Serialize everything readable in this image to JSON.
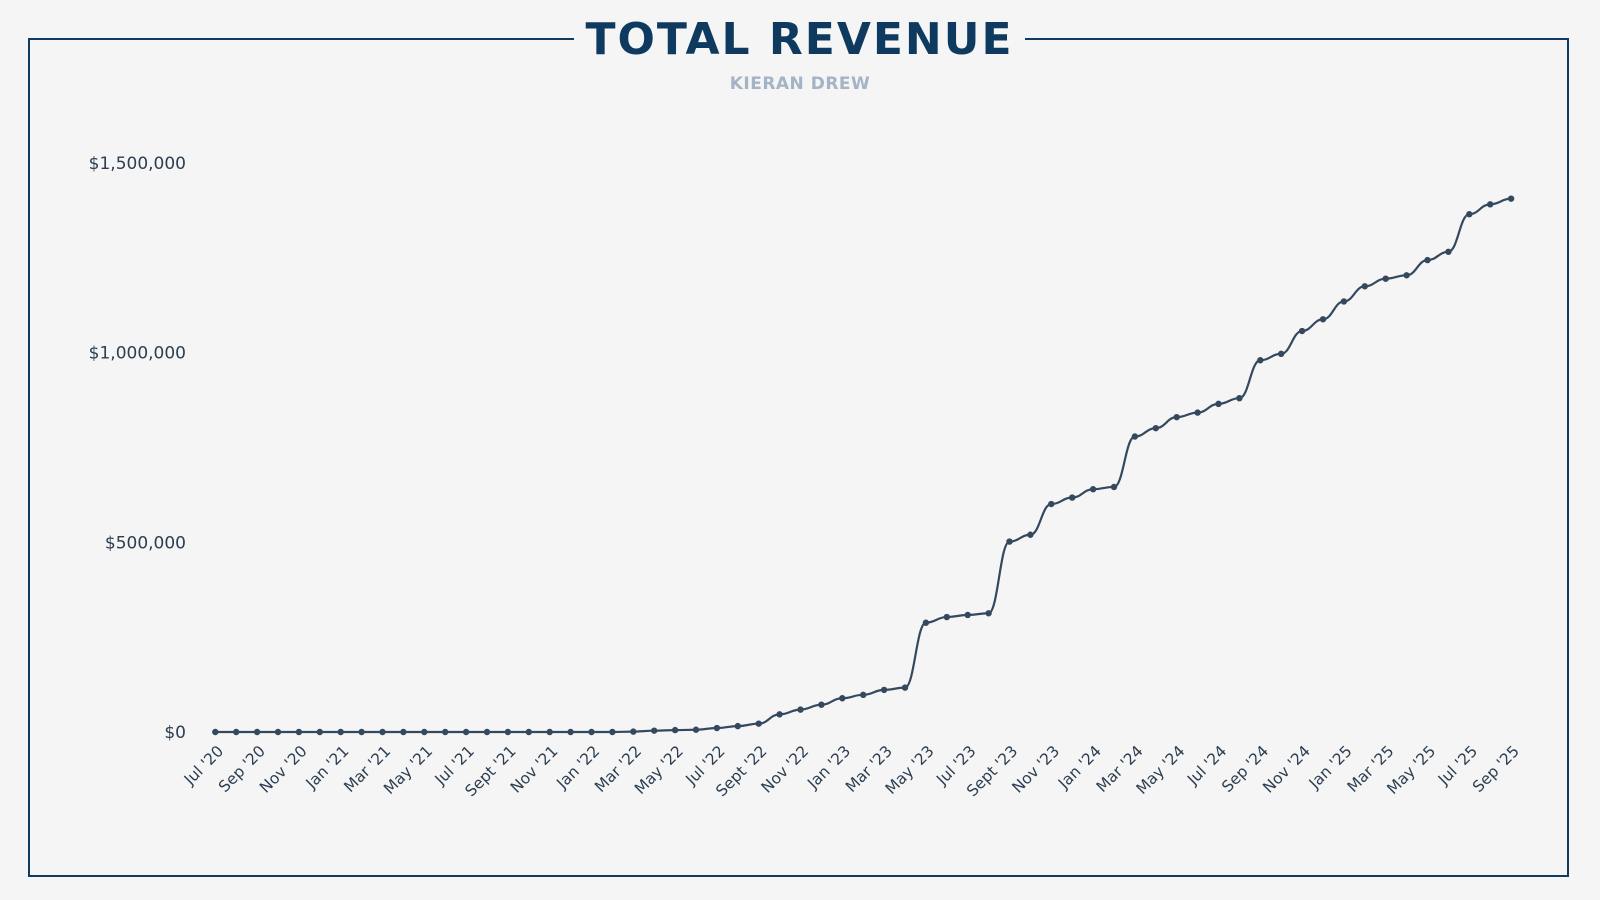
{
  "chart_data": {
    "type": "line",
    "title": "TOTAL REVENUE",
    "subtitle": "KIERAN DREW",
    "xlabel": "",
    "ylabel": "",
    "ylim": [
      0,
      1500000
    ],
    "yticks": [
      0,
      500000,
      1000000,
      1500000
    ],
    "ytick_labels": [
      "$0",
      "$500,000",
      "$1,000,000",
      "$1,500,000"
    ],
    "grid": false,
    "legend": "none",
    "line_color": "#34495e",
    "x": [
      "Jul '20",
      "Aug '20",
      "Sep '20",
      "Oct '20",
      "Nov '20",
      "Dec '20",
      "Jan '21",
      "Feb '21",
      "Mar '21",
      "Apr '21",
      "May '21",
      "Jun '21",
      "Jul '21",
      "Aug '21",
      "Sept '21",
      "Oct '21",
      "Nov '21",
      "Dec '21",
      "Jan '22",
      "Feb '22",
      "Mar '22",
      "Apr '22",
      "May '22",
      "Jun '22",
      "Jul '22",
      "Aug '22",
      "Sept '22",
      "Oct '22",
      "Nov '22",
      "Dec '22",
      "Jan '23",
      "Feb '23",
      "Mar '23",
      "Apr '23",
      "May '23",
      "Jun '23",
      "Jul '23",
      "Aug '23",
      "Sept '23",
      "Oct '23",
      "Nov '23",
      "Dec '23",
      "Jan '24",
      "Feb '24",
      "Mar '24",
      "Apr '24",
      "May '24",
      "Jun '24",
      "Jul '24",
      "Aug '24",
      "Sep '24",
      "Oct '24",
      "Nov '24",
      "Dec '24",
      "Jan '25",
      "Feb '25",
      "Mar '25",
      "Apr '25",
      "May '25",
      "Jun '25",
      "Jul '25",
      "Aug '25",
      "Sep '25"
    ],
    "xtick_labels": [
      "Jul '20",
      "Sep '20",
      "Nov '20",
      "Jan '21",
      "Mar '21",
      "May '21",
      "Jul '21",
      "Sept '21",
      "Nov '21",
      "Jan '22",
      "Mar '22",
      "May '22",
      "Jul '22",
      "Sept '22",
      "Nov '22",
      "Jan '23",
      "Mar '23",
      "May '23",
      "Jul '23",
      "Sept '23",
      "Nov '23",
      "Jan '24",
      "Mar '24",
      "May '24",
      "Jul '24",
      "Sep '24",
      "Nov '24",
      "Jan '25",
      "Mar '25",
      "May '25",
      "Jul '25",
      "Sep '25"
    ],
    "series": [
      {
        "name": "Total Revenue",
        "values": [
          0,
          0,
          0,
          0,
          0,
          0,
          0,
          0,
          0,
          0,
          0,
          0,
          0,
          0,
          0,
          0,
          0,
          0,
          0,
          0,
          1000,
          3500,
          5000,
          6000,
          10500,
          15500,
          22000,
          46500,
          59000,
          72000,
          89000,
          98000,
          111000,
          117000,
          288000,
          303000,
          308500,
          313000,
          502000,
          520000,
          601000,
          618000,
          640000,
          646000,
          779000,
          801000,
          830000,
          842000,
          865000,
          880000,
          980000,
          997000,
          1057000,
          1088000,
          1135000,
          1175000,
          1195000,
          1204000,
          1244000,
          1266000,
          1365000,
          1391000,
          1406000
        ]
      }
    ]
  }
}
